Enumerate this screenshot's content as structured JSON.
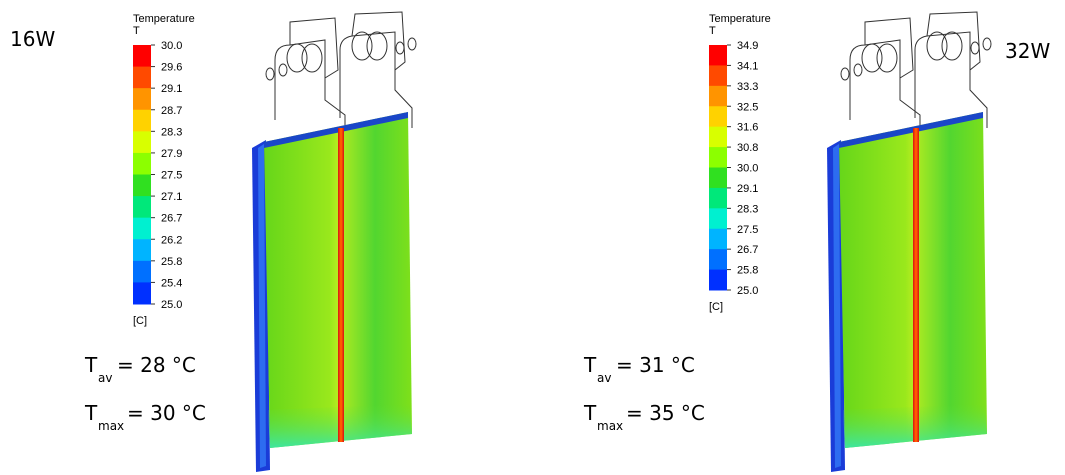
{
  "panels": [
    {
      "power": "16W",
      "legend": {
        "title": "Temperature",
        "symbol": "T",
        "unit": "[C]",
        "ticks": [
          "30.0",
          "29.6",
          "29.1",
          "28.7",
          "28.3",
          "27.9",
          "27.5",
          "27.1",
          "26.7",
          "26.2",
          "25.8",
          "25.4",
          "25.0"
        ]
      },
      "t_av": {
        "symbol": "T",
        "subscript": "av",
        "value": "= 28 °C"
      },
      "t_max": {
        "symbol": "T",
        "subscript": "max",
        "value": "= 30 °C"
      }
    },
    {
      "power": "32W",
      "legend": {
        "title": "Temperature",
        "symbol": "T",
        "unit": "[C]",
        "ticks": [
          "34.9",
          "34.1",
          "33.3",
          "32.5",
          "31.6",
          "30.8",
          "30.0",
          "29.1",
          "28.3",
          "27.5",
          "26.7",
          "25.8",
          "25.0"
        ]
      },
      "t_av": {
        "symbol": "T",
        "subscript": "av",
        "value": "= 31 °C"
      },
      "t_max": {
        "symbol": "T",
        "subscript": "max",
        "value": "= 35 °C"
      }
    }
  ]
}
